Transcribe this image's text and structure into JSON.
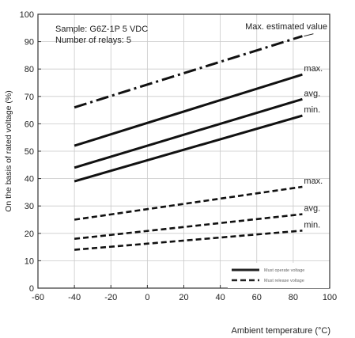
{
  "chart_data": {
    "type": "line",
    "sample_label": "Sample: G6Z-1P  5 VDC",
    "relays_label": "Number of relays: 5",
    "xlabel": "Ambient temperature (°C)",
    "ylabel": "On the basis of rated voltage (%)",
    "xlim": [
      -60,
      100
    ],
    "ylim": [
      0,
      100
    ],
    "x_ticks": [
      -60,
      -40,
      -20,
      0,
      20,
      40,
      60,
      80,
      100
    ],
    "y_ticks": [
      0,
      10,
      20,
      30,
      40,
      50,
      60,
      70,
      80,
      90,
      100
    ],
    "x_tick_labels": [
      "-60",
      "-40",
      "-20",
      "0",
      "20",
      "40",
      "60",
      "80",
      "100"
    ],
    "y_tick_labels": [
      "0",
      "10",
      "20",
      "30",
      "40",
      "50",
      "60",
      "70",
      "80",
      "90",
      "100"
    ],
    "grid": true,
    "series": [
      {
        "label": "Max. estimated value",
        "group": "estimated",
        "x": [
          -40,
          85
        ],
        "y": [
          66,
          92
        ]
      },
      {
        "label": "max.",
        "group": "operate",
        "x": [
          -40,
          85
        ],
        "y": [
          52,
          78
        ]
      },
      {
        "label": "avg.",
        "group": "operate",
        "x": [
          -40,
          85
        ],
        "y": [
          44,
          69
        ]
      },
      {
        "label": "min.",
        "group": "operate",
        "x": [
          -40,
          85
        ],
        "y": [
          39,
          63
        ]
      },
      {
        "label": "max.",
        "group": "release",
        "x": [
          -40,
          85
        ],
        "y": [
          25,
          37
        ]
      },
      {
        "label": "avg.",
        "group": "release",
        "x": [
          -40,
          85
        ],
        "y": [
          18,
          27
        ]
      },
      {
        "label": "min.",
        "group": "release",
        "x": [
          -40,
          85
        ],
        "y": [
          14,
          21
        ]
      }
    ],
    "legend": {
      "position": "bottom-right",
      "operate_label": "Must operate voltage",
      "release_label": "Must release voltage"
    }
  }
}
